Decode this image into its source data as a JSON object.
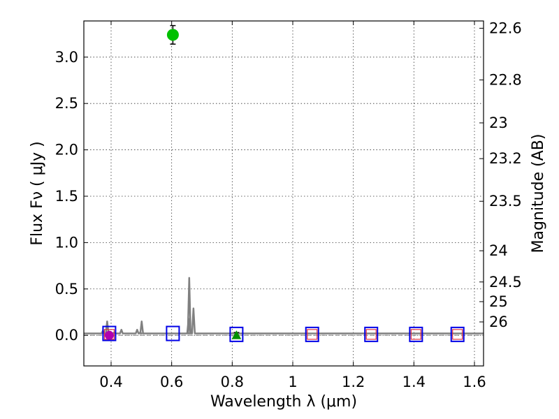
{
  "chart_data": {
    "type": "scatter",
    "xlabel": "Wavelength  λ (μm)",
    "ylabel": "Flux  Fν  ( μJy )",
    "ylabel_right": "Magnitude (AB)",
    "xlim": [
      0.31,
      1.63
    ],
    "ylim": [
      -0.33,
      3.39
    ],
    "grid": true,
    "x_ticks": [
      {
        "value": 0.4,
        "label": "0.4"
      },
      {
        "value": 0.6,
        "label": "0.6"
      },
      {
        "value": 0.8,
        "label": "0.8"
      },
      {
        "value": 1.0,
        "label": "1"
      },
      {
        "value": 1.2,
        "label": "1.2"
      },
      {
        "value": 1.4,
        "label": "1.4"
      },
      {
        "value": 1.6,
        "label": "1.6"
      }
    ],
    "y_ticks": [
      {
        "value": 0.0,
        "label": "0.0"
      },
      {
        "value": 0.5,
        "label": "0.5"
      },
      {
        "value": 1.0,
        "label": "1.0"
      },
      {
        "value": 1.5,
        "label": "1.5"
      },
      {
        "value": 2.0,
        "label": "2.0"
      },
      {
        "value": 2.5,
        "label": "2.5"
      },
      {
        "value": 3.0,
        "label": "3.0"
      }
    ],
    "right_ticks": [
      {
        "mag": 22.6,
        "label": "22.6"
      },
      {
        "mag": 22.8,
        "label": "22.8"
      },
      {
        "mag": 23.0,
        "label": "23"
      },
      {
        "mag": 23.2,
        "label": "23.2"
      },
      {
        "mag": 23.5,
        "label": "23.5"
      },
      {
        "mag": 24.0,
        "label": "24"
      },
      {
        "mag": 24.5,
        "label": "24.5"
      },
      {
        "mag": 25.0,
        "label": "25"
      },
      {
        "mag": 26.0,
        "label": "26"
      }
    ],
    "observed_points": [
      {
        "x": 0.394,
        "y": 0.0,
        "yerr": 0.03,
        "color": "#b000b0",
        "marker": "circle"
      },
      {
        "x": 0.604,
        "y": 3.24,
        "yerr": 0.1,
        "color": "#00c000",
        "marker": "circle"
      },
      {
        "x": 0.814,
        "y": 0.0,
        "yerr": 0.03,
        "color": "#009000",
        "marker": "triangle"
      }
    ],
    "model_points_blue": [
      {
        "x": 0.394,
        "y": 0.02
      },
      {
        "x": 0.604,
        "y": 0.02
      },
      {
        "x": 0.814,
        "y": 0.01
      },
      {
        "x": 1.064,
        "y": 0.01
      },
      {
        "x": 1.259,
        "y": 0.01
      },
      {
        "x": 1.407,
        "y": 0.01
      },
      {
        "x": 1.544,
        "y": 0.01
      }
    ],
    "model_points_red": [
      {
        "x": 0.394,
        "y": 0.01
      },
      {
        "x": 1.064,
        "y": 0.01
      },
      {
        "x": 1.259,
        "y": 0.01
      },
      {
        "x": 1.407,
        "y": 0.01
      },
      {
        "x": 1.544,
        "y": 0.01
      }
    ],
    "zero_line": {
      "y": 0.0,
      "color": "#808080"
    },
    "spectrum_baseline": 0.02,
    "spectrum_lines": [
      {
        "x": 0.373,
        "peak": 0.05
      },
      {
        "x": 0.387,
        "peak": 0.15
      },
      {
        "x": 0.41,
        "peak": 0.03
      },
      {
        "x": 0.434,
        "peak": 0.06
      },
      {
        "x": 0.486,
        "peak": 0.06
      },
      {
        "x": 0.496,
        "peak": 0.03
      },
      {
        "x": 0.501,
        "peak": 0.15
      },
      {
        "x": 0.656,
        "peak": 0.18
      },
      {
        "x": 0.658,
        "peak": 0.62
      },
      {
        "x": 0.672,
        "peak": 0.29
      }
    ],
    "colors": {
      "spectrum": "#808080",
      "model_blue": "#0000e6",
      "model_red": "#e03040",
      "axis": "#000000"
    }
  }
}
